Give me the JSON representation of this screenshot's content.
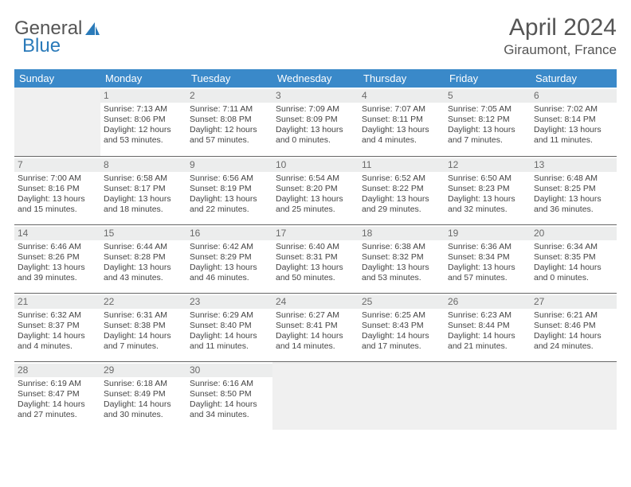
{
  "logo": {
    "text_a": "General",
    "text_b": "Blue",
    "icon_color": "#2a7ab9"
  },
  "title": "April 2024",
  "location": "Giraumont, France",
  "colors": {
    "header_bg": "#3a89c9",
    "header_fg": "#ffffff",
    "daynum_bg": "#eceded",
    "daynum_fg": "#6a6a6a",
    "empty_bg": "#f0f0f0",
    "border": "#666666",
    "text": "#444444"
  },
  "day_names": [
    "Sunday",
    "Monday",
    "Tuesday",
    "Wednesday",
    "Thursday",
    "Friday",
    "Saturday"
  ],
  "weeks": [
    [
      null,
      {
        "n": "1",
        "sr": "Sunrise: 7:13 AM",
        "ss": "Sunset: 8:06 PM",
        "dl": "Daylight: 12 hours and 53 minutes."
      },
      {
        "n": "2",
        "sr": "Sunrise: 7:11 AM",
        "ss": "Sunset: 8:08 PM",
        "dl": "Daylight: 12 hours and 57 minutes."
      },
      {
        "n": "3",
        "sr": "Sunrise: 7:09 AM",
        "ss": "Sunset: 8:09 PM",
        "dl": "Daylight: 13 hours and 0 minutes."
      },
      {
        "n": "4",
        "sr": "Sunrise: 7:07 AM",
        "ss": "Sunset: 8:11 PM",
        "dl": "Daylight: 13 hours and 4 minutes."
      },
      {
        "n": "5",
        "sr": "Sunrise: 7:05 AM",
        "ss": "Sunset: 8:12 PM",
        "dl": "Daylight: 13 hours and 7 minutes."
      },
      {
        "n": "6",
        "sr": "Sunrise: 7:02 AM",
        "ss": "Sunset: 8:14 PM",
        "dl": "Daylight: 13 hours and 11 minutes."
      }
    ],
    [
      {
        "n": "7",
        "sr": "Sunrise: 7:00 AM",
        "ss": "Sunset: 8:16 PM",
        "dl": "Daylight: 13 hours and 15 minutes."
      },
      {
        "n": "8",
        "sr": "Sunrise: 6:58 AM",
        "ss": "Sunset: 8:17 PM",
        "dl": "Daylight: 13 hours and 18 minutes."
      },
      {
        "n": "9",
        "sr": "Sunrise: 6:56 AM",
        "ss": "Sunset: 8:19 PM",
        "dl": "Daylight: 13 hours and 22 minutes."
      },
      {
        "n": "10",
        "sr": "Sunrise: 6:54 AM",
        "ss": "Sunset: 8:20 PM",
        "dl": "Daylight: 13 hours and 25 minutes."
      },
      {
        "n": "11",
        "sr": "Sunrise: 6:52 AM",
        "ss": "Sunset: 8:22 PM",
        "dl": "Daylight: 13 hours and 29 minutes."
      },
      {
        "n": "12",
        "sr": "Sunrise: 6:50 AM",
        "ss": "Sunset: 8:23 PM",
        "dl": "Daylight: 13 hours and 32 minutes."
      },
      {
        "n": "13",
        "sr": "Sunrise: 6:48 AM",
        "ss": "Sunset: 8:25 PM",
        "dl": "Daylight: 13 hours and 36 minutes."
      }
    ],
    [
      {
        "n": "14",
        "sr": "Sunrise: 6:46 AM",
        "ss": "Sunset: 8:26 PM",
        "dl": "Daylight: 13 hours and 39 minutes."
      },
      {
        "n": "15",
        "sr": "Sunrise: 6:44 AM",
        "ss": "Sunset: 8:28 PM",
        "dl": "Daylight: 13 hours and 43 minutes."
      },
      {
        "n": "16",
        "sr": "Sunrise: 6:42 AM",
        "ss": "Sunset: 8:29 PM",
        "dl": "Daylight: 13 hours and 46 minutes."
      },
      {
        "n": "17",
        "sr": "Sunrise: 6:40 AM",
        "ss": "Sunset: 8:31 PM",
        "dl": "Daylight: 13 hours and 50 minutes."
      },
      {
        "n": "18",
        "sr": "Sunrise: 6:38 AM",
        "ss": "Sunset: 8:32 PM",
        "dl": "Daylight: 13 hours and 53 minutes."
      },
      {
        "n": "19",
        "sr": "Sunrise: 6:36 AM",
        "ss": "Sunset: 8:34 PM",
        "dl": "Daylight: 13 hours and 57 minutes."
      },
      {
        "n": "20",
        "sr": "Sunrise: 6:34 AM",
        "ss": "Sunset: 8:35 PM",
        "dl": "Daylight: 14 hours and 0 minutes."
      }
    ],
    [
      {
        "n": "21",
        "sr": "Sunrise: 6:32 AM",
        "ss": "Sunset: 8:37 PM",
        "dl": "Daylight: 14 hours and 4 minutes."
      },
      {
        "n": "22",
        "sr": "Sunrise: 6:31 AM",
        "ss": "Sunset: 8:38 PM",
        "dl": "Daylight: 14 hours and 7 minutes."
      },
      {
        "n": "23",
        "sr": "Sunrise: 6:29 AM",
        "ss": "Sunset: 8:40 PM",
        "dl": "Daylight: 14 hours and 11 minutes."
      },
      {
        "n": "24",
        "sr": "Sunrise: 6:27 AM",
        "ss": "Sunset: 8:41 PM",
        "dl": "Daylight: 14 hours and 14 minutes."
      },
      {
        "n": "25",
        "sr": "Sunrise: 6:25 AM",
        "ss": "Sunset: 8:43 PM",
        "dl": "Daylight: 14 hours and 17 minutes."
      },
      {
        "n": "26",
        "sr": "Sunrise: 6:23 AM",
        "ss": "Sunset: 8:44 PM",
        "dl": "Daylight: 14 hours and 21 minutes."
      },
      {
        "n": "27",
        "sr": "Sunrise: 6:21 AM",
        "ss": "Sunset: 8:46 PM",
        "dl": "Daylight: 14 hours and 24 minutes."
      }
    ],
    [
      {
        "n": "28",
        "sr": "Sunrise: 6:19 AM",
        "ss": "Sunset: 8:47 PM",
        "dl": "Daylight: 14 hours and 27 minutes."
      },
      {
        "n": "29",
        "sr": "Sunrise: 6:18 AM",
        "ss": "Sunset: 8:49 PM",
        "dl": "Daylight: 14 hours and 30 minutes."
      },
      {
        "n": "30",
        "sr": "Sunrise: 6:16 AM",
        "ss": "Sunset: 8:50 PM",
        "dl": "Daylight: 14 hours and 34 minutes."
      },
      null,
      null,
      null,
      null
    ]
  ]
}
